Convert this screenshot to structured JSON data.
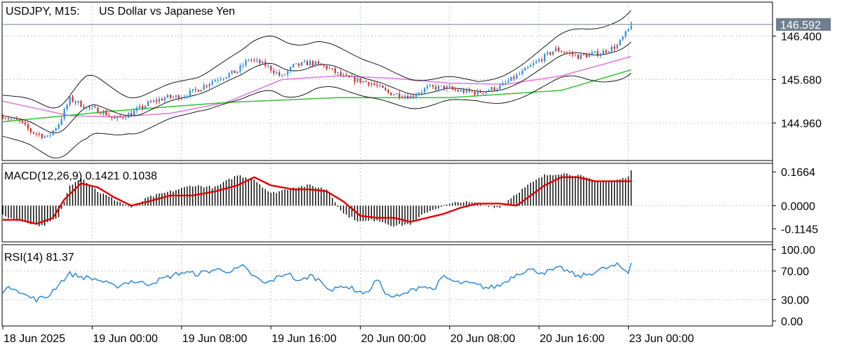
{
  "header": {
    "symbol_timeframe": "USDJPY, M15:",
    "description": "US Dollar vs Japanese Yen"
  },
  "price_panel": {
    "current_price_label": "146.592",
    "y_ticks": [
      "146.400",
      "145.680",
      "144.960"
    ],
    "y_tick_values": [
      146.4,
      145.68,
      144.96
    ],
    "y_range": [
      144.35,
      146.95
    ],
    "current_price": 146.592
  },
  "macd_panel": {
    "indicator_label": "MACD(12,26,9) 0.1421 0.1038",
    "y_ticks": [
      "0.1664",
      "0.0000",
      "-0.1145"
    ],
    "y_tick_values": [
      0.1664,
      0.0,
      -0.1145
    ],
    "y_range": [
      -0.175,
      0.205
    ]
  },
  "rsi_panel": {
    "indicator_label": "RSI(14) 81.37",
    "y_ticks": [
      "100.00",
      "70.00",
      "30.00",
      "0.00"
    ],
    "y_tick_values": [
      100,
      70,
      30,
      0
    ],
    "y_range": [
      -6,
      106
    ]
  },
  "time_axis": {
    "labels": [
      "18 Jun 2025",
      "19 Jun 00:00",
      "19 Jun 08:00",
      "19 Jun 16:00",
      "20 Jun 00:00",
      "20 Jun 08:00",
      "20 Jun 16:00",
      "23 Jun 00:00"
    ],
    "label_bar_index": [
      0,
      32,
      64,
      96,
      128,
      160,
      192,
      224
    ]
  },
  "colors": {
    "bull_candle": "#2f8ad8",
    "bear_candle": "#d62728",
    "bollinger": "#000000",
    "ma_slow": "#3cc43c",
    "ma_fast": "#e07de0",
    "macd_histogram": "#000000",
    "macd_signal": "#e00000",
    "rsi_line": "#2f8ad8",
    "grid": "#c8c8c8",
    "price_tag_bg": "#6f7f8f",
    "price_line": "#6f7f8f"
  },
  "chart_data": {
    "type": "candlestick",
    "symbol": "USDJPY",
    "timeframe": "M15",
    "start_label": "18 Jun 2025",
    "anchors_price": [
      [
        0,
        145.08
      ],
      [
        6,
        144.98
      ],
      [
        10,
        144.82
      ],
      [
        16,
        144.72
      ],
      [
        20,
        144.95
      ],
      [
        24,
        145.36
      ],
      [
        30,
        145.22
      ],
      [
        36,
        145.14
      ],
      [
        40,
        145.02
      ],
      [
        46,
        145.12
      ],
      [
        52,
        145.28
      ],
      [
        58,
        145.38
      ],
      [
        64,
        145.4
      ],
      [
        70,
        145.52
      ],
      [
        76,
        145.68
      ],
      [
        84,
        145.82
      ],
      [
        88,
        146.02
      ],
      [
        94,
        145.92
      ],
      [
        100,
        145.72
      ],
      [
        104,
        145.9
      ],
      [
        110,
        145.96
      ],
      [
        116,
        145.88
      ],
      [
        122,
        145.72
      ],
      [
        128,
        145.66
      ],
      [
        132,
        145.62
      ],
      [
        138,
        145.46
      ],
      [
        146,
        145.4
      ],
      [
        152,
        145.54
      ],
      [
        158,
        145.55
      ],
      [
        162,
        145.5
      ],
      [
        170,
        145.46
      ],
      [
        178,
        145.56
      ],
      [
        186,
        145.8
      ],
      [
        192,
        146.0
      ],
      [
        198,
        146.18
      ],
      [
        206,
        146.06
      ],
      [
        214,
        146.12
      ],
      [
        220,
        146.24
      ],
      [
        224,
        146.5
      ],
      [
        225,
        146.59
      ]
    ],
    "anchors_macd_hist": [
      [
        0,
        -0.05
      ],
      [
        8,
        -0.08
      ],
      [
        14,
        -0.1
      ],
      [
        20,
        -0.06
      ],
      [
        24,
        0.1
      ],
      [
        28,
        0.14
      ],
      [
        34,
        0.07
      ],
      [
        40,
        0.03
      ],
      [
        46,
        -0.01
      ],
      [
        52,
        0.04
      ],
      [
        60,
        0.07
      ],
      [
        68,
        0.1
      ],
      [
        76,
        0.09
      ],
      [
        84,
        0.15
      ],
      [
        90,
        0.13
      ],
      [
        96,
        0.06
      ],
      [
        104,
        0.09
      ],
      [
        110,
        0.1
      ],
      [
        116,
        0.08
      ],
      [
        122,
        -0.04
      ],
      [
        128,
        -0.08
      ],
      [
        134,
        -0.07
      ],
      [
        140,
        -0.1
      ],
      [
        146,
        -0.09
      ],
      [
        152,
        -0.03
      ],
      [
        158,
        0.0
      ],
      [
        164,
        0.02
      ],
      [
        170,
        0.01
      ],
      [
        178,
        -0.01
      ],
      [
        182,
        0.04
      ],
      [
        188,
        0.1
      ],
      [
        194,
        0.15
      ],
      [
        200,
        0.16
      ],
      [
        206,
        0.15
      ],
      [
        212,
        0.12
      ],
      [
        218,
        0.12
      ],
      [
        224,
        0.14
      ],
      [
        225,
        0.18
      ]
    ],
    "anchors_macd_signal": [
      [
        0,
        -0.07
      ],
      [
        6,
        -0.07
      ],
      [
        12,
        -0.09
      ],
      [
        18,
        -0.06
      ],
      [
        22,
        0.03
      ],
      [
        28,
        0.11
      ],
      [
        34,
        0.09
      ],
      [
        40,
        0.04
      ],
      [
        46,
        0.0
      ],
      [
        52,
        0.02
      ],
      [
        60,
        0.05
      ],
      [
        68,
        0.05
      ],
      [
        76,
        0.07
      ],
      [
        84,
        0.1
      ],
      [
        90,
        0.14
      ],
      [
        96,
        0.1
      ],
      [
        104,
        0.08
      ],
      [
        110,
        0.08
      ],
      [
        116,
        0.07
      ],
      [
        122,
        0.02
      ],
      [
        128,
        -0.05
      ],
      [
        134,
        -0.06
      ],
      [
        140,
        -0.06
      ],
      [
        146,
        -0.08
      ],
      [
        152,
        -0.06
      ],
      [
        158,
        -0.04
      ],
      [
        164,
        -0.01
      ],
      [
        170,
        0.01
      ],
      [
        178,
        0.01
      ],
      [
        184,
        0.0
      ],
      [
        188,
        0.04
      ],
      [
        194,
        0.1
      ],
      [
        200,
        0.14
      ],
      [
        206,
        0.14
      ],
      [
        212,
        0.12
      ],
      [
        218,
        0.12
      ],
      [
        224,
        0.12
      ],
      [
        225,
        0.12
      ]
    ],
    "anchors_rsi": [
      [
        0,
        42
      ],
      [
        4,
        48
      ],
      [
        8,
        36
      ],
      [
        12,
        30
      ],
      [
        16,
        34
      ],
      [
        20,
        52
      ],
      [
        24,
        66
      ],
      [
        28,
        62
      ],
      [
        34,
        58
      ],
      [
        40,
        48
      ],
      [
        46,
        56
      ],
      [
        52,
        52
      ],
      [
        58,
        60
      ],
      [
        64,
        68
      ],
      [
        70,
        66
      ],
      [
        76,
        72
      ],
      [
        82,
        70
      ],
      [
        86,
        76
      ],
      [
        90,
        62
      ],
      [
        94,
        52
      ],
      [
        98,
        60
      ],
      [
        102,
        68
      ],
      [
        106,
        54
      ],
      [
        110,
        64
      ],
      [
        114,
        56
      ],
      [
        118,
        42
      ],
      [
        122,
        50
      ],
      [
        126,
        44
      ],
      [
        130,
        38
      ],
      [
        134,
        58
      ],
      [
        138,
        35
      ],
      [
        142,
        34
      ],
      [
        146,
        42
      ],
      [
        150,
        50
      ],
      [
        154,
        44
      ],
      [
        158,
        62
      ],
      [
        162,
        54
      ],
      [
        168,
        52
      ],
      [
        174,
        46
      ],
      [
        178,
        50
      ],
      [
        184,
        66
      ],
      [
        188,
        72
      ],
      [
        194,
        68
      ],
      [
        200,
        74
      ],
      [
        206,
        62
      ],
      [
        210,
        66
      ],
      [
        214,
        72
      ],
      [
        220,
        78
      ],
      [
        224,
        68
      ],
      [
        225,
        81.37
      ]
    ],
    "anchors_ma_slow": [
      [
        0,
        144.98
      ],
      [
        40,
        145.16
      ],
      [
        80,
        145.3
      ],
      [
        120,
        145.38
      ],
      [
        160,
        145.38
      ],
      [
        200,
        145.5
      ],
      [
        225,
        145.84
      ]
    ],
    "anchors_ma_fast": [
      [
        0,
        145.32
      ],
      [
        12,
        145.2
      ],
      [
        24,
        145.08
      ],
      [
        40,
        145.06
      ],
      [
        60,
        145.12
      ],
      [
        80,
        145.3
      ],
      [
        100,
        145.68
      ],
      [
        120,
        145.74
      ],
      [
        140,
        145.7
      ],
      [
        160,
        145.62
      ],
      [
        180,
        145.6
      ],
      [
        200,
        145.74
      ],
      [
        225,
        146.06
      ]
    ],
    "bollinger_width": [
      [
        0,
        0.34
      ],
      [
        20,
        0.42
      ],
      [
        30,
        0.52
      ],
      [
        45,
        0.3
      ],
      [
        70,
        0.28
      ],
      [
        90,
        0.44
      ],
      [
        100,
        0.46
      ],
      [
        120,
        0.34
      ],
      [
        140,
        0.26
      ],
      [
        170,
        0.16
      ],
      [
        190,
        0.3
      ],
      [
        210,
        0.42
      ],
      [
        225,
        0.52
      ]
    ]
  }
}
